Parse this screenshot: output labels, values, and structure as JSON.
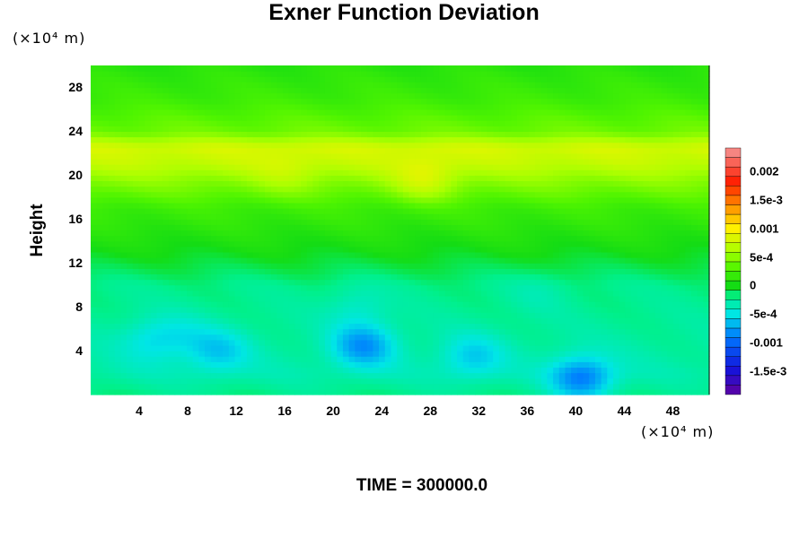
{
  "chart_data": {
    "type": "heatmap",
    "title": "Exner Function Deviation",
    "ylabel": "Height",
    "y_unit": "(×10⁴ m)",
    "x_unit": "(×10⁴ m)",
    "xlim": [
      0,
      51
    ],
    "ylim": [
      0,
      30
    ],
    "x_ticks": [
      4,
      8,
      12,
      16,
      20,
      24,
      28,
      32,
      36,
      40,
      44,
      48
    ],
    "y_ticks": [
      4,
      8,
      12,
      16,
      20,
      24,
      28
    ],
    "colorbar": {
      "range": [
        -0.0019,
        0.0024
      ],
      "tick_values": [
        0.002,
        0.0015,
        0.001,
        0.0005,
        0,
        -0.0005,
        -0.001,
        -0.0015
      ],
      "tick_labels": [
        "0.002",
        "1.5e-3",
        "0.001",
        "5e-4",
        "0",
        "-5e-4",
        "-0.001",
        "-1.5e-3"
      ]
    },
    "annotation": "TIME = 300000.0",
    "field": {
      "background_profile": [
        {
          "z": 0,
          "value": -0.0002
        },
        {
          "z": 2,
          "value": -0.0003
        },
        {
          "z": 10,
          "value": -0.0002
        },
        {
          "z": 13,
          "value": 0.0
        },
        {
          "z": 17,
          "value": 0.0002
        },
        {
          "z": 19.5,
          "value": 0.0005
        },
        {
          "z": 21,
          "value": 0.0007
        },
        {
          "z": 22.5,
          "value": 0.0008
        },
        {
          "z": 24,
          "value": 0.0004
        },
        {
          "z": 27,
          "value": 0.0002
        },
        {
          "z": 30,
          "value": 0.0001
        }
      ],
      "anomalies": [
        {
          "x": 5,
          "z": 5,
          "value": -0.0005
        },
        {
          "x": 7.5,
          "z": 5.5,
          "value": -0.0004
        },
        {
          "x": 10.5,
          "z": 4,
          "value": -0.0006
        },
        {
          "x": 22.5,
          "z": 4.5,
          "value": -0.0008
        },
        {
          "x": 22,
          "z": 8,
          "value": -0.0004
        },
        {
          "x": 31.5,
          "z": 3.5,
          "value": -0.0006
        },
        {
          "x": 40.5,
          "z": 1.5,
          "value": -0.0009
        },
        {
          "x": 37,
          "z": 9.5,
          "value": -0.0003
        },
        {
          "x": 27.5,
          "z": 19.5,
          "value": 0.0008
        },
        {
          "x": 16,
          "z": 20,
          "value": 0.0007
        }
      ]
    }
  }
}
